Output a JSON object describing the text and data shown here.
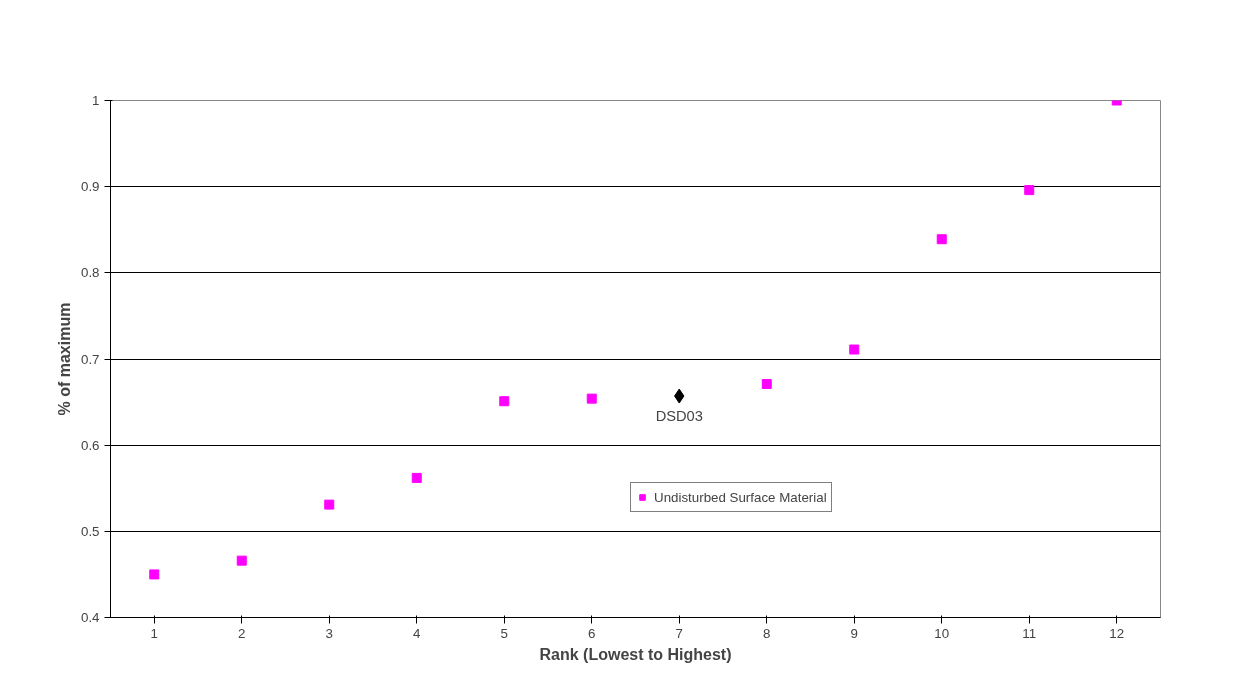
{
  "chart_data": {
    "type": "scatter",
    "xlabel": "Rank (Lowest to Highest)",
    "ylabel": "% of maximum",
    "categories": [
      "1",
      "2",
      "3",
      "4",
      "5",
      "6",
      "7",
      "8",
      "9",
      "10",
      "11",
      "12"
    ],
    "series": [
      {
        "name": "Undisturbed Surface Material",
        "color": "#ff00ff",
        "marker": "square",
        "values": [
          0.45,
          0.466,
          0.531,
          0.562,
          0.651,
          0.654,
          null,
          0.671,
          0.711,
          0.839,
          0.896,
          1.0
        ]
      },
      {
        "color": "#000000",
        "marker": "diamond",
        "values": [
          null,
          null,
          null,
          null,
          null,
          null,
          0.657,
          null,
          null,
          null,
          null,
          null
        ]
      }
    ],
    "annotations": [
      {
        "text": "DSD03",
        "x": "7",
        "y": 0.657
      }
    ],
    "ylim": [
      0.4,
      1.0
    ],
    "yticks": [
      0.4,
      0.5,
      0.6,
      0.7,
      0.8,
      0.9,
      1
    ],
    "grid": "y",
    "legend": "center"
  }
}
